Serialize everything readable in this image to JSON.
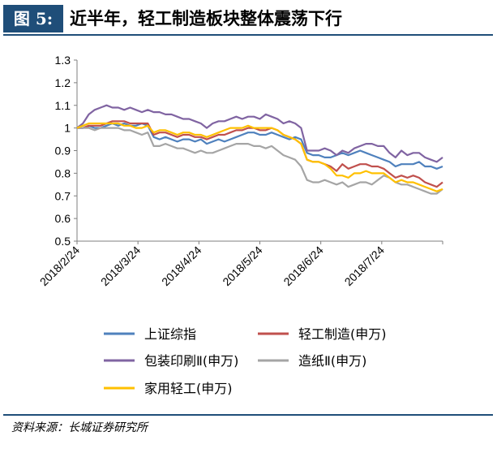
{
  "header": {
    "figure_label": "图 5:",
    "title": "近半年，轻工制造板块整体震荡下行"
  },
  "source": "资料来源：长城证券研究所",
  "chart_data": {
    "type": "line",
    "x_tick_labels": [
      "2018/2/24",
      "2018/3/24",
      "2018/4/24",
      "2018/5/24",
      "2018/6/24",
      "2018/7/24"
    ],
    "x_range": [
      "2018/2/24",
      "2018/8/24"
    ],
    "ylim": [
      0.5,
      1.3
    ],
    "y_ticks": [
      "1.3",
      "1.2",
      "1.1",
      "1",
      "0.9",
      "0.8",
      "0.7",
      "0.6",
      "0.5"
    ],
    "grid": false,
    "legend_position": "bottom",
    "series": [
      {
        "name": "上证综指",
        "color": "#4f81bd",
        "values": [
          1.0,
          1.0,
          1.01,
          1.0,
          1.0,
          1.01,
          1.02,
          1.01,
          1.02,
          1.01,
          1.01,
          1.02,
          1.01,
          0.96,
          0.95,
          0.96,
          0.95,
          0.94,
          0.95,
          0.95,
          0.94,
          0.95,
          0.93,
          0.94,
          0.95,
          0.94,
          0.95,
          0.96,
          0.97,
          0.98,
          0.98,
          0.97,
          0.97,
          0.98,
          0.97,
          0.96,
          0.95,
          0.96,
          0.95,
          0.89,
          0.88,
          0.88,
          0.87,
          0.87,
          0.88,
          0.89,
          0.88,
          0.89,
          0.9,
          0.89,
          0.88,
          0.87,
          0.86,
          0.85,
          0.83,
          0.84,
          0.84,
          0.84,
          0.85,
          0.83,
          0.83,
          0.82,
          0.83
        ]
      },
      {
        "name": "轻工制造(申万)",
        "color": "#c0504d",
        "values": [
          1.0,
          1.0,
          1.01,
          1.01,
          1.01,
          1.02,
          1.03,
          1.03,
          1.03,
          1.02,
          1.02,
          1.02,
          1.02,
          0.97,
          0.98,
          0.98,
          0.97,
          0.96,
          0.97,
          0.97,
          0.96,
          0.96,
          0.95,
          0.96,
          0.97,
          0.97,
          0.98,
          0.99,
          0.99,
          1.0,
          1.0,
          0.99,
          0.99,
          1.0,
          0.99,
          0.97,
          0.96,
          0.95,
          0.93,
          0.86,
          0.85,
          0.85,
          0.84,
          0.83,
          0.81,
          0.84,
          0.82,
          0.83,
          0.84,
          0.84,
          0.83,
          0.83,
          0.82,
          0.8,
          0.78,
          0.79,
          0.78,
          0.79,
          0.78,
          0.76,
          0.75,
          0.74,
          0.76
        ]
      },
      {
        "name": "包装印刷Ⅱ(申万)",
        "color": "#8064a2",
        "values": [
          1.0,
          1.02,
          1.06,
          1.08,
          1.09,
          1.1,
          1.09,
          1.09,
          1.08,
          1.09,
          1.08,
          1.07,
          1.08,
          1.07,
          1.07,
          1.06,
          1.06,
          1.05,
          1.04,
          1.04,
          1.03,
          1.02,
          1.0,
          1.02,
          1.03,
          1.03,
          1.04,
          1.05,
          1.04,
          1.05,
          1.05,
          1.04,
          1.06,
          1.05,
          1.04,
          1.02,
          1.03,
          1.02,
          1.0,
          0.9,
          0.9,
          0.9,
          0.91,
          0.9,
          0.88,
          0.9,
          0.89,
          0.91,
          0.92,
          0.93,
          0.93,
          0.92,
          0.92,
          0.89,
          0.87,
          0.9,
          0.88,
          0.89,
          0.89,
          0.87,
          0.86,
          0.85,
          0.87
        ]
      },
      {
        "name": "造纸Ⅱ(申万)",
        "color": "#a5a5a5",
        "values": [
          1.0,
          1.0,
          1.0,
          0.99,
          1.0,
          1.0,
          1.0,
          1.0,
          0.99,
          0.99,
          0.98,
          0.97,
          0.98,
          0.92,
          0.92,
          0.93,
          0.92,
          0.91,
          0.91,
          0.9,
          0.89,
          0.9,
          0.89,
          0.89,
          0.9,
          0.91,
          0.92,
          0.93,
          0.93,
          0.93,
          0.92,
          0.92,
          0.91,
          0.92,
          0.9,
          0.88,
          0.87,
          0.86,
          0.83,
          0.77,
          0.76,
          0.76,
          0.77,
          0.76,
          0.75,
          0.76,
          0.74,
          0.75,
          0.76,
          0.76,
          0.75,
          0.77,
          0.79,
          0.78,
          0.76,
          0.75,
          0.75,
          0.74,
          0.73,
          0.72,
          0.71,
          0.71,
          0.73
        ]
      },
      {
        "name": "家用轻工(申万)",
        "color": "#ffc000",
        "values": [
          1.0,
          1.01,
          1.02,
          1.02,
          1.02,
          1.02,
          1.02,
          1.02,
          1.01,
          1.01,
          1.0,
          1.0,
          1.01,
          0.98,
          0.99,
          0.99,
          0.98,
          0.97,
          0.98,
          0.98,
          0.97,
          0.97,
          0.96,
          0.97,
          0.98,
          0.99,
          1.0,
          1.0,
          1.0,
          1.01,
          1.0,
          1.0,
          1.0,
          1.0,
          0.99,
          0.97,
          0.96,
          0.95,
          0.93,
          0.86,
          0.85,
          0.85,
          0.84,
          0.82,
          0.79,
          0.79,
          0.78,
          0.8,
          0.8,
          0.81,
          0.8,
          0.8,
          0.8,
          0.78,
          0.76,
          0.77,
          0.76,
          0.76,
          0.75,
          0.74,
          0.73,
          0.72,
          0.73
        ]
      }
    ]
  }
}
